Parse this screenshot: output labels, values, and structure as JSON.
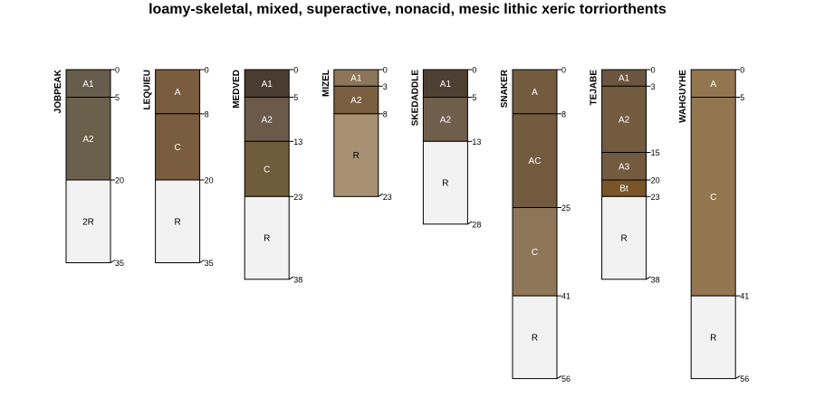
{
  "chart_data": {
    "type": "soil-profile-sketch",
    "title": "loamy-skeletal, mixed, superactive, nonacid, mesic lithic xeric torriorthents",
    "depth_units": "cm",
    "profiles": [
      {
        "name": "JOBPEAK",
        "horizons": [
          {
            "name": "A1",
            "top": 0,
            "bottom": 5,
            "color": "#675D4C",
            "text_color": "#ffffff"
          },
          {
            "name": "A2",
            "top": 5,
            "bottom": 20,
            "color": "#6B604C",
            "text_color": "#ffffff"
          },
          {
            "name": "2R",
            "top": 20,
            "bottom": 35,
            "color": "#F2F2F2",
            "text_color": "#000000"
          }
        ]
      },
      {
        "name": "LEQUIEU",
        "horizons": [
          {
            "name": "A",
            "top": 0,
            "bottom": 8,
            "color": "#7A5C3E",
            "text_color": "#ffffff"
          },
          {
            "name": "C",
            "top": 8,
            "bottom": 20,
            "color": "#7A5C3E",
            "text_color": "#ffffff"
          },
          {
            "name": "R",
            "top": 20,
            "bottom": 35,
            "color": "#F2F2F2",
            "text_color": "#000000"
          }
        ]
      },
      {
        "name": "MEDVED",
        "horizons": [
          {
            "name": "A1",
            "top": 0,
            "bottom": 5,
            "color": "#4A3C30",
            "text_color": "#ffffff"
          },
          {
            "name": "A2",
            "top": 5,
            "bottom": 13,
            "color": "#6B5A4A",
            "text_color": "#ffffff"
          },
          {
            "name": "C",
            "top": 13,
            "bottom": 23,
            "color": "#6E5C3A",
            "text_color": "#ffffff"
          },
          {
            "name": "R",
            "top": 23,
            "bottom": 38,
            "color": "#F2F2F2",
            "text_color": "#000000"
          }
        ]
      },
      {
        "name": "MIZEL",
        "horizons": [
          {
            "name": "A1",
            "top": 0,
            "bottom": 3,
            "color": "#8C7558",
            "text_color": "#ffffff"
          },
          {
            "name": "A2",
            "top": 3,
            "bottom": 8,
            "color": "#7A5E40",
            "text_color": "#ffffff"
          },
          {
            "name": "R",
            "top": 8,
            "bottom": 23,
            "color": "#A89072",
            "text_color": "#000000"
          }
        ]
      },
      {
        "name": "SKEDADDLE",
        "horizons": [
          {
            "name": "A1",
            "top": 0,
            "bottom": 5,
            "color": "#4E4033",
            "text_color": "#ffffff"
          },
          {
            "name": "A2",
            "top": 5,
            "bottom": 13,
            "color": "#705E4C",
            "text_color": "#ffffff"
          },
          {
            "name": "R",
            "top": 13,
            "bottom": 28,
            "color": "#F2F2F2",
            "text_color": "#000000"
          }
        ]
      },
      {
        "name": "SNAKER",
        "horizons": [
          {
            "name": "A",
            "top": 0,
            "bottom": 8,
            "color": "#735B3F",
            "text_color": "#ffffff"
          },
          {
            "name": "AC",
            "top": 8,
            "bottom": 25,
            "color": "#735B3F",
            "text_color": "#ffffff"
          },
          {
            "name": "C",
            "top": 25,
            "bottom": 41,
            "color": "#8E7658",
            "text_color": "#ffffff"
          },
          {
            "name": "R",
            "top": 41,
            "bottom": 56,
            "color": "#F2F2F2",
            "text_color": "#000000"
          }
        ]
      },
      {
        "name": "TEJABE",
        "horizons": [
          {
            "name": "A1",
            "top": 0,
            "bottom": 3,
            "color": "#6B5540",
            "text_color": "#ffffff"
          },
          {
            "name": "A2",
            "top": 3,
            "bottom": 15,
            "color": "#735B3F",
            "text_color": "#ffffff"
          },
          {
            "name": "A3",
            "top": 15,
            "bottom": 20,
            "color": "#735B3F",
            "text_color": "#ffffff"
          },
          {
            "name": "Bt",
            "top": 20,
            "bottom": 23,
            "color": "#7A5528",
            "text_color": "#ffffff"
          },
          {
            "name": "R",
            "top": 23,
            "bottom": 38,
            "color": "#F2F2F2",
            "text_color": "#000000"
          }
        ]
      },
      {
        "name": "WAHGUYHE",
        "horizons": [
          {
            "name": "A",
            "top": 0,
            "bottom": 5,
            "color": "#93754F",
            "text_color": "#ffffff"
          },
          {
            "name": "C",
            "top": 5,
            "bottom": 41,
            "color": "#93754F",
            "text_color": "#ffffff"
          },
          {
            "name": "R",
            "top": 41,
            "bottom": 56,
            "color": "#F2F2F2",
            "text_color": "#000000"
          }
        ]
      }
    ]
  }
}
